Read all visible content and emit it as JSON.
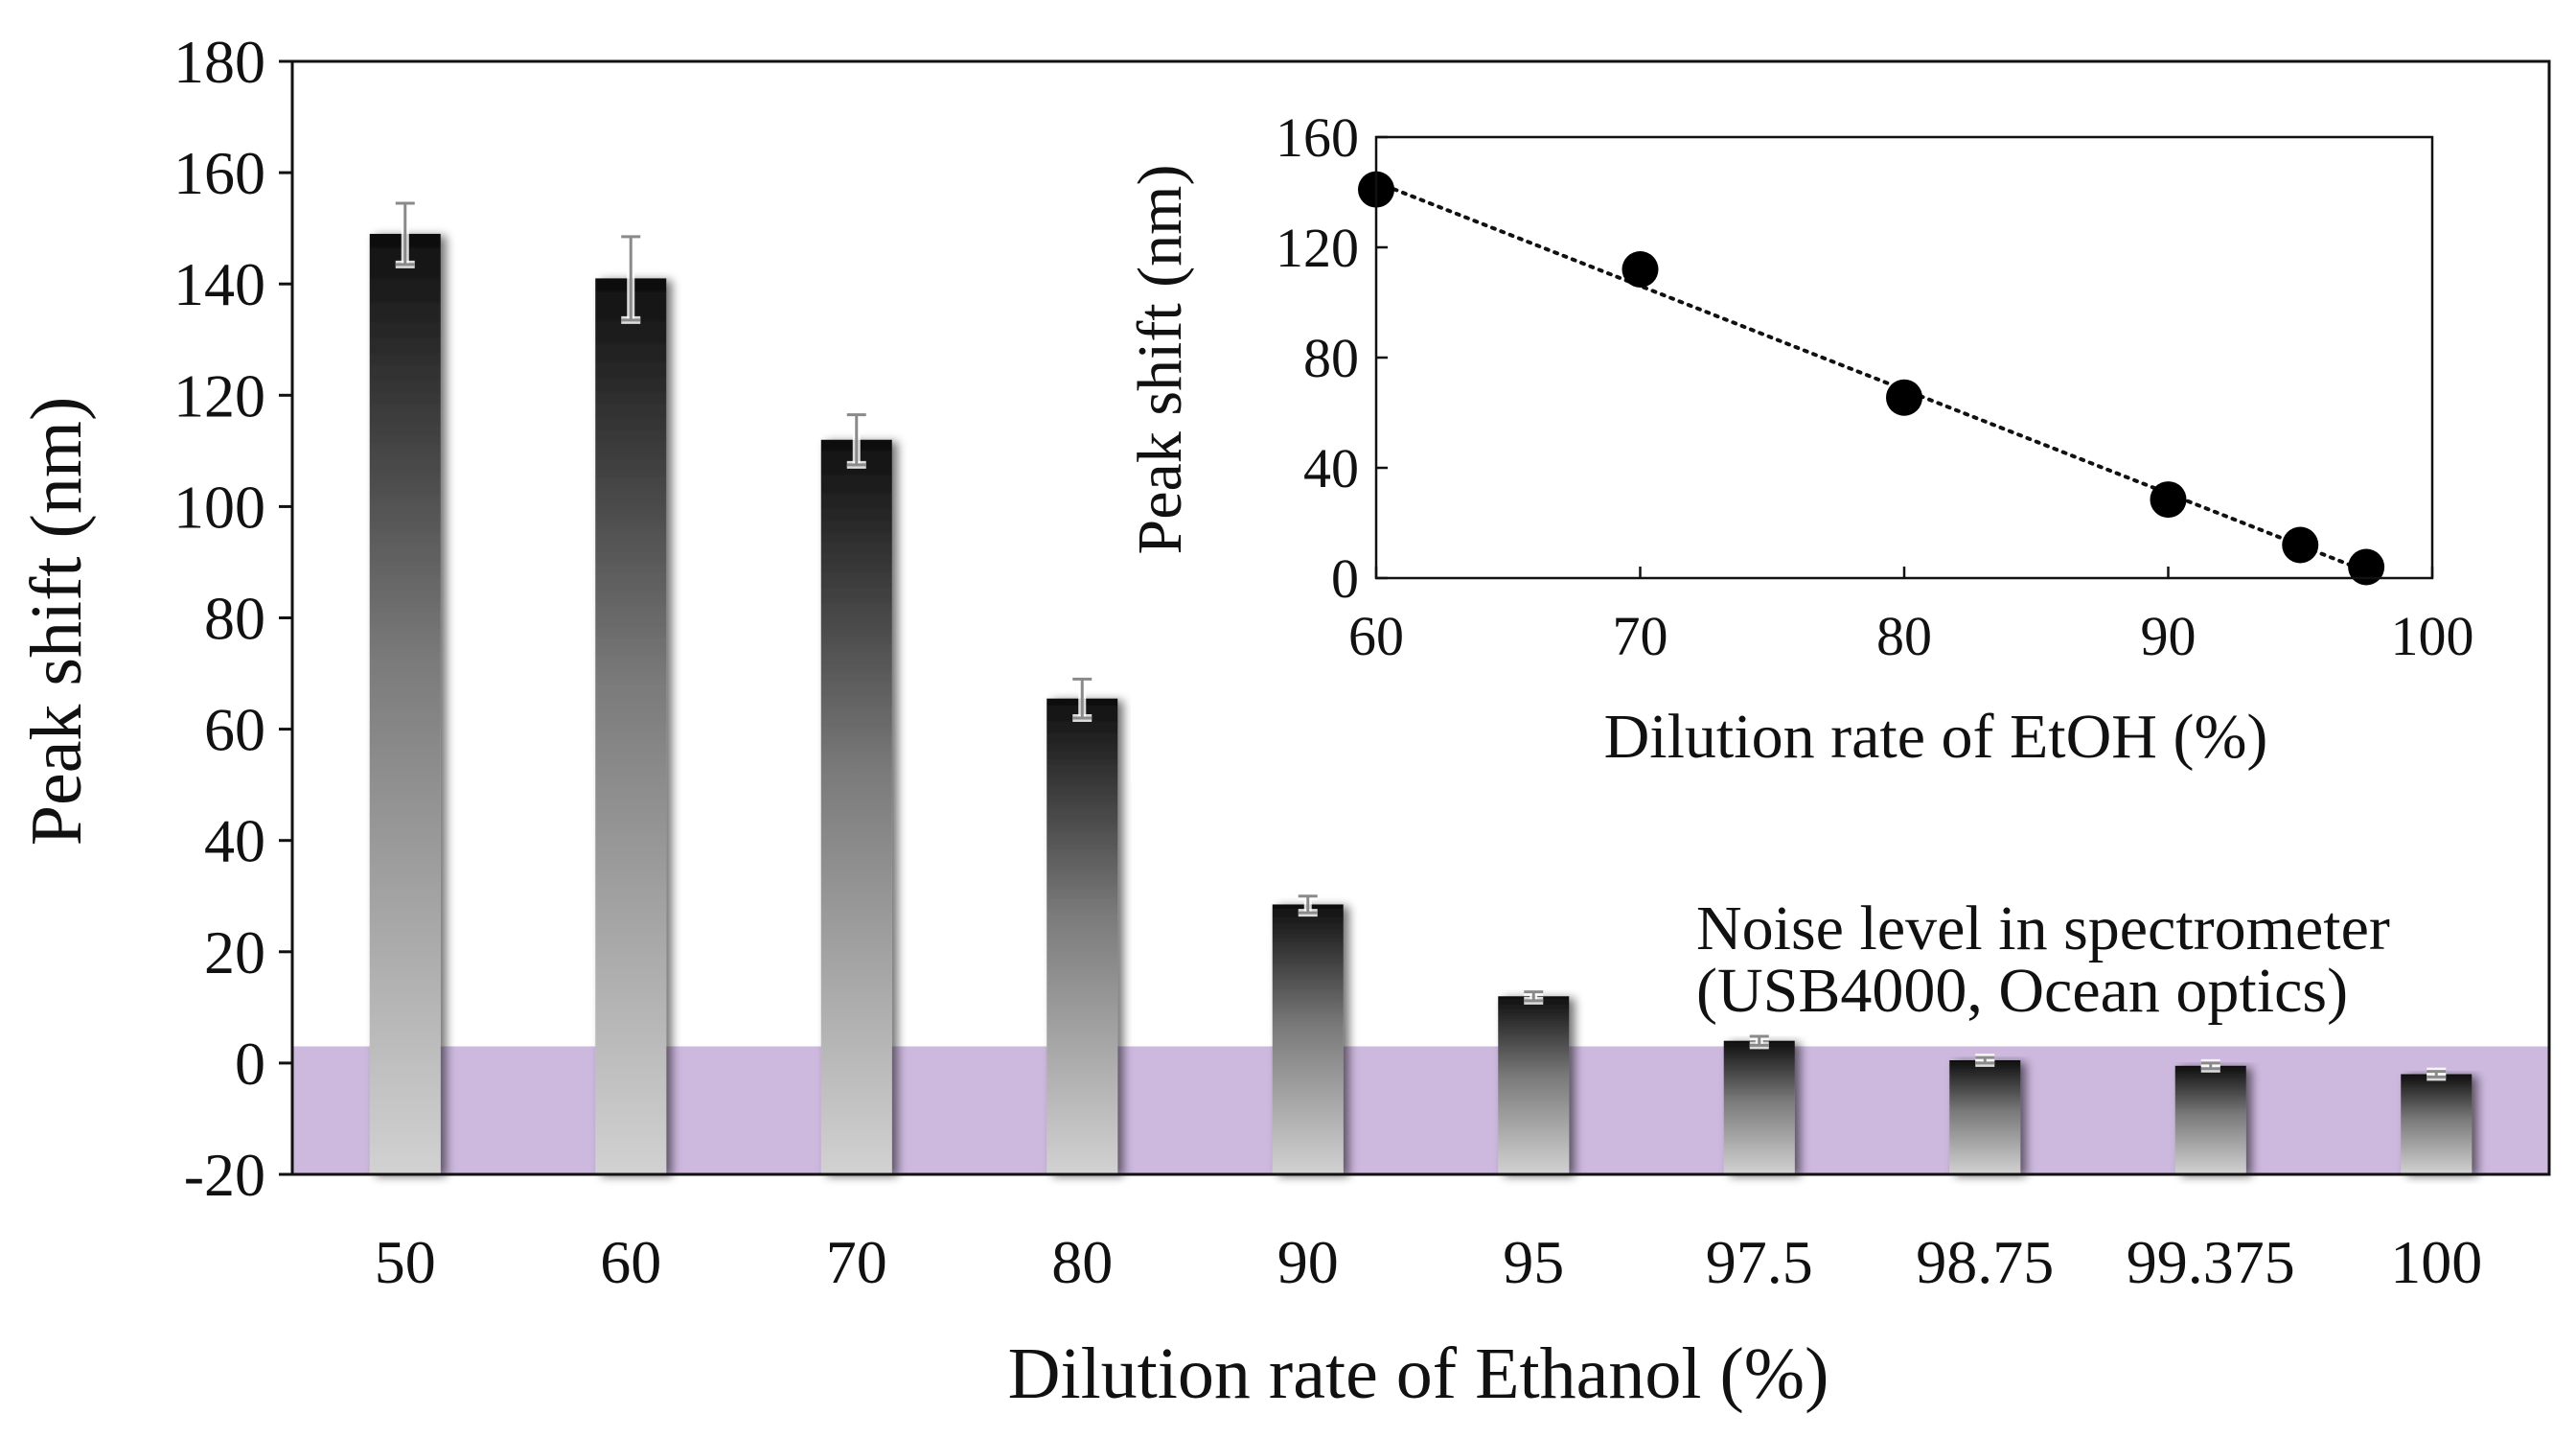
{
  "chart_data": [
    {
      "type": "bar",
      "title": "",
      "xlabel": "Dilution rate of Ethanol (%)",
      "ylabel": "Peak shift (nm)",
      "categories": [
        "50",
        "60",
        "70",
        "80",
        "90",
        "95",
        "97.5",
        "98.75",
        "99.375",
        "100"
      ],
      "values": [
        149,
        141,
        112,
        65.5,
        28.5,
        12,
        4,
        0.5,
        -0.5,
        -2
      ],
      "errors": [
        5.5,
        7.5,
        4.5,
        3.5,
        1.5,
        0.8,
        0.8,
        0.5,
        0.5,
        0.5
      ],
      "ylim": [
        -20,
        180
      ],
      "yticks": [
        "-20",
        "0",
        "20",
        "40",
        "60",
        "80",
        "100",
        "120",
        "140",
        "160",
        "180"
      ],
      "grid": false,
      "noise_band": {
        "ymin": -20,
        "ymax": 3,
        "color": "#cdb8de",
        "label_line1": "Noise level in spectrometer",
        "label_line2": "(USB4000, Ocean optics)"
      },
      "bar_gradient": [
        "#0e0e0e",
        "#d2d2d2"
      ]
    },
    {
      "type": "scatter",
      "title": "",
      "xlabel": "Dilution rate of EtOH (%)",
      "ylabel": "Peak shift (nm)",
      "x": [
        60,
        70,
        80,
        90,
        95,
        97.5
      ],
      "y": [
        141,
        112,
        65.5,
        28.5,
        12,
        4
      ],
      "trendline": "linear",
      "xlim": [
        60,
        100
      ],
      "ylim": [
        0,
        160
      ],
      "xticks": [
        "60",
        "70",
        "80",
        "90",
        "100"
      ],
      "yticks": [
        "0",
        "40",
        "80",
        "120",
        "160"
      ],
      "grid": false,
      "placement": "top-right inset"
    }
  ]
}
